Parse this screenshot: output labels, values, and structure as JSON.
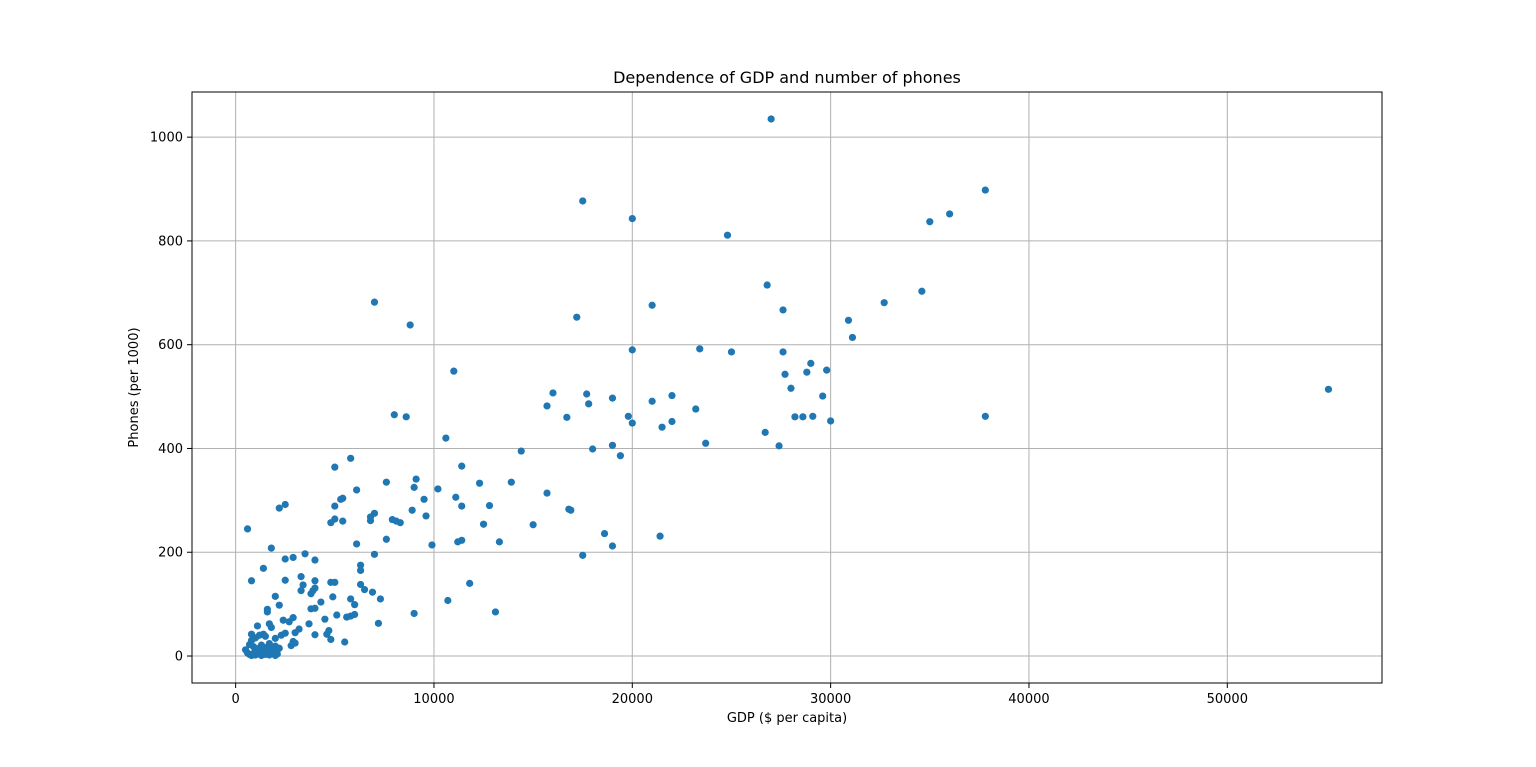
{
  "chart_data": {
    "type": "scatter",
    "title": "Dependence of GDP and number of phones",
    "xlabel": "GDP ($ per capita)",
    "ylabel": "Phones (per 1000)",
    "xlim": [
      -2200,
      57800
    ],
    "ylim": [
      -52,
      1087
    ],
    "xticks": [
      0,
      10000,
      20000,
      30000,
      40000,
      50000
    ],
    "yticks": [
      0,
      200,
      400,
      600,
      800,
      1000
    ],
    "grid": true,
    "marker_color": "#1f77b4",
    "points": [
      [
        27000,
        1035
      ],
      [
        17500,
        877
      ],
      [
        20000,
        843
      ],
      [
        24800,
        811
      ],
      [
        37800,
        898
      ],
      [
        36000,
        852
      ],
      [
        35000,
        837
      ],
      [
        26800,
        715
      ],
      [
        27600,
        667
      ],
      [
        34600,
        703
      ],
      [
        32700,
        681
      ],
      [
        21000,
        676
      ],
      [
        17200,
        653
      ],
      [
        30900,
        647
      ],
      [
        31100,
        614
      ],
      [
        7000,
        682
      ],
      [
        8800,
        638
      ],
      [
        23400,
        592
      ],
      [
        20000,
        590
      ],
      [
        25000,
        586
      ],
      [
        27600,
        586
      ],
      [
        29000,
        564
      ],
      [
        29800,
        551
      ],
      [
        27700,
        543
      ],
      [
        28800,
        547
      ],
      [
        11000,
        549
      ],
      [
        55100,
        514
      ],
      [
        16000,
        507
      ],
      [
        17700,
        505
      ],
      [
        19000,
        497
      ],
      [
        22000,
        502
      ],
      [
        28000,
        516
      ],
      [
        29600,
        501
      ],
      [
        15700,
        482
      ],
      [
        17800,
        486
      ],
      [
        21000,
        491
      ],
      [
        23200,
        476
      ],
      [
        16700,
        460
      ],
      [
        19800,
        462
      ],
      [
        28200,
        461
      ],
      [
        28600,
        461
      ],
      [
        29100,
        462
      ],
      [
        37800,
        462
      ],
      [
        8000,
        465
      ],
      [
        8600,
        461
      ],
      [
        20000,
        449
      ],
      [
        21500,
        441
      ],
      [
        22000,
        452
      ],
      [
        30000,
        453
      ],
      [
        26700,
        431
      ],
      [
        10600,
        420
      ],
      [
        19000,
        406
      ],
      [
        23700,
        410
      ],
      [
        27400,
        405
      ],
      [
        14400,
        395
      ],
      [
        18000,
        399
      ],
      [
        19400,
        386
      ],
      [
        5800,
        381
      ],
      [
        5000,
        364
      ],
      [
        11400,
        366
      ],
      [
        9100,
        341
      ],
      [
        7600,
        335
      ],
      [
        9000,
        325
      ],
      [
        12300,
        333
      ],
      [
        13900,
        335
      ],
      [
        10200,
        322
      ],
      [
        6100,
        320
      ],
      [
        5400,
        304
      ],
      [
        5300,
        302
      ],
      [
        9500,
        302
      ],
      [
        11100,
        306
      ],
      [
        15700,
        314
      ],
      [
        5000,
        289
      ],
      [
        7000,
        275
      ],
      [
        8900,
        281
      ],
      [
        11400,
        289
      ],
      [
        12800,
        290
      ],
      [
        16800,
        283
      ],
      [
        16900,
        281
      ],
      [
        2200,
        285
      ],
      [
        2500,
        292
      ],
      [
        4800,
        257
      ],
      [
        5000,
        264
      ],
      [
        5400,
        260
      ],
      [
        6800,
        268
      ],
      [
        6800,
        261
      ],
      [
        7900,
        263
      ],
      [
        8300,
        257
      ],
      [
        8100,
        260
      ],
      [
        9600,
        270
      ],
      [
        12500,
        254
      ],
      [
        15000,
        253
      ],
      [
        600,
        245
      ],
      [
        7600,
        225
      ],
      [
        9900,
        214
      ],
      [
        11200,
        220
      ],
      [
        11400,
        223
      ],
      [
        13300,
        220
      ],
      [
        18600,
        236
      ],
      [
        19000,
        212
      ],
      [
        21400,
        231
      ],
      [
        6100,
        216
      ],
      [
        7000,
        196
      ],
      [
        1800,
        208
      ],
      [
        3500,
        197
      ],
      [
        4000,
        185
      ],
      [
        2500,
        187
      ],
      [
        2900,
        190
      ],
      [
        6300,
        175
      ],
      [
        6300,
        165
      ],
      [
        17500,
        194
      ],
      [
        1400,
        169
      ],
      [
        800,
        145
      ],
      [
        2500,
        146
      ],
      [
        3300,
        153
      ],
      [
        3400,
        137
      ],
      [
        3300,
        126
      ],
      [
        3800,
        120
      ],
      [
        3900,
        126
      ],
      [
        4000,
        145
      ],
      [
        4000,
        131
      ],
      [
        4800,
        142
      ],
      [
        5000,
        142
      ],
      [
        6300,
        138
      ],
      [
        6500,
        128
      ],
      [
        6900,
        123
      ],
      [
        7300,
        110
      ],
      [
        11800,
        140
      ],
      [
        1600,
        90
      ],
      [
        1600,
        85
      ],
      [
        2000,
        115
      ],
      [
        2200,
        98
      ],
      [
        3800,
        91
      ],
      [
        4000,
        92
      ],
      [
        4300,
        104
      ],
      [
        4900,
        114
      ],
      [
        5800,
        110
      ],
      [
        6000,
        99
      ],
      [
        9000,
        82
      ],
      [
        10700,
        107
      ],
      [
        13100,
        85
      ],
      [
        1100,
        58
      ],
      [
        1700,
        62
      ],
      [
        1800,
        55
      ],
      [
        2400,
        69
      ],
      [
        2700,
        66
      ],
      [
        2900,
        74
      ],
      [
        3200,
        52
      ],
      [
        3700,
        62
      ],
      [
        4000,
        41
      ],
      [
        4500,
        71
      ],
      [
        4600,
        42
      ],
      [
        4700,
        49
      ],
      [
        5100,
        79
      ],
      [
        5600,
        75
      ],
      [
        5800,
        77
      ],
      [
        6000,
        80
      ],
      [
        7200,
        63
      ],
      [
        800,
        30
      ],
      [
        800,
        42
      ],
      [
        1000,
        35
      ],
      [
        1200,
        40
      ],
      [
        1400,
        42
      ],
      [
        1500,
        38
      ],
      [
        2000,
        34
      ],
      [
        2300,
        40
      ],
      [
        2500,
        44
      ],
      [
        2800,
        20
      ],
      [
        2900,
        28
      ],
      [
        3000,
        45
      ],
      [
        3000,
        25
      ],
      [
        4800,
        32
      ],
      [
        5500,
        27
      ],
      [
        700,
        22
      ],
      [
        900,
        18
      ],
      [
        1100,
        14
      ],
      [
        1300,
        21
      ],
      [
        1500,
        16
      ],
      [
        1700,
        24
      ],
      [
        1800,
        12
      ],
      [
        2000,
        19
      ],
      [
        2100,
        11
      ],
      [
        2200,
        15
      ],
      [
        500,
        12
      ],
      [
        600,
        6
      ],
      [
        700,
        3
      ],
      [
        800,
        1
      ],
      [
        900,
        5
      ],
      [
        1000,
        2
      ],
      [
        1100,
        7
      ],
      [
        1200,
        4
      ],
      [
        1300,
        1
      ],
      [
        1400,
        6
      ],
      [
        1500,
        3
      ],
      [
        1600,
        8
      ],
      [
        1700,
        2
      ],
      [
        1800,
        5
      ],
      [
        1900,
        9
      ],
      [
        2000,
        1
      ],
      [
        2100,
        4
      ],
      [
        1000,
        10
      ],
      [
        1300,
        9
      ],
      [
        1700,
        10
      ]
    ]
  }
}
